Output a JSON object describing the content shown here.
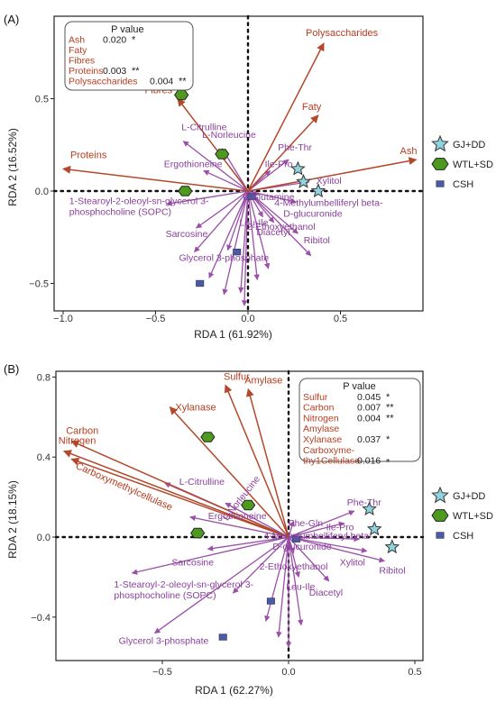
{
  "legend": {
    "items": [
      {
        "label": "GJ+DD",
        "shape": "star",
        "color": "#8fd3df"
      },
      {
        "label": "WTL+SD",
        "shape": "hexagon",
        "color": "#4e9a1f"
      },
      {
        "label": "CSH",
        "shape": "square",
        "color": "#4c5aa3"
      }
    ]
  },
  "colors": {
    "environment": "#b3482a",
    "metabolite": "#9a4fa8",
    "text_env": "#b83d20",
    "text_met": "#8a3f9c"
  },
  "chart_data": [
    {
      "type": "scatter",
      "panel_label": "(A)",
      "xlabel": "RDA 1 (61.92%)",
      "ylabel": "RDA 2 (16.52%)",
      "xlim": [
        -1.05,
        0.95
      ],
      "ylim": [
        -0.66,
        0.9
      ],
      "xticks": [
        {
          "v": -1.0,
          "label": "−1.0"
        },
        {
          "v": -0.5,
          "label": "−0.5"
        },
        {
          "v": 0.0,
          "label": "0.0"
        },
        {
          "v": 0.5,
          "label": "0.5"
        }
      ],
      "yticks": [
        {
          "v": -0.5,
          "label": "−0.5"
        },
        {
          "v": 0.0,
          "label": "0.0"
        },
        {
          "v": 0.5,
          "label": "0.5"
        }
      ],
      "pvalue_table": {
        "header": "P value",
        "rows": [
          {
            "name": "Ash",
            "p": "0.020",
            "sig": "*"
          },
          {
            "name": "Faty",
            "p": "",
            "sig": ""
          },
          {
            "name": "Fibres",
            "p": "",
            "sig": ""
          },
          {
            "name": "Proteins",
            "p": "0.003",
            "sig": "**"
          },
          {
            "name": "Polysaccharides",
            "p": "0.004",
            "sig": "**"
          }
        ]
      },
      "environment_arrows": [
        {
          "label": "Polysaccharides",
          "x": 0.41,
          "y": 0.8
        },
        {
          "label": "Faty",
          "x": 0.38,
          "y": 0.41
        },
        {
          "label": "Fibres",
          "x": -0.38,
          "y": 0.5
        },
        {
          "label": "Proteins",
          "x": -1.0,
          "y": 0.12
        },
        {
          "label": "Ash",
          "x": 0.91,
          "y": 0.17
        }
      ],
      "metabolite_arrows": [
        {
          "label": "L-Citrulline",
          "x": -0.35,
          "y": 0.27
        },
        {
          "label": "L-Norleucine",
          "x": -0.14,
          "y": 0.23
        },
        {
          "label": "Ergothioneine",
          "x": -0.24,
          "y": 0.11
        },
        {
          "label": "Phe-Thr",
          "x": 0.22,
          "y": 0.17
        },
        {
          "label": "Ile-Pro",
          "x": 0.12,
          "y": 0.11
        },
        {
          "label": "Xylitol",
          "x": 0.33,
          "y": 0.05
        },
        {
          "label": "L-Glutamine",
          "x": 0.06,
          "y": -0.02
        },
        {
          "label": "4-Methylumbelliferyl beta-D-glucuronide",
          "x": 0.26,
          "y": -0.06
        },
        {
          "label": "Leu-Ile",
          "x": 0.08,
          "y": -0.14
        },
        {
          "label": "2-Ethoxyethanol",
          "x": 0.14,
          "y": -0.17
        },
        {
          "label": "Diacetyl",
          "x": 0.27,
          "y": -0.23
        },
        {
          "label": "Ribitol",
          "x": 0.34,
          "y": -0.35
        },
        {
          "label": "Sarcosine",
          "x": -0.28,
          "y": -0.2
        },
        {
          "label": "Glycerol 3-phosphate",
          "x": -0.11,
          "y": -0.32
        },
        {
          "label": "1-Stearoyl-2-oleoyl-sn-glycerol 3-phosphocholine (SOPC)",
          "x": -0.44,
          "y": -0.07
        },
        {
          "label": "",
          "x": -0.04,
          "y": -0.55
        },
        {
          "label": "",
          "x": -0.21,
          "y": -0.47
        },
        {
          "label": "",
          "x": 0.05,
          "y": -0.48
        },
        {
          "label": "",
          "x": -0.13,
          "y": -0.56
        },
        {
          "label": "",
          "x": -0.29,
          "y": -0.33
        },
        {
          "label": "",
          "x": -0.02,
          "y": -0.62
        },
        {
          "label": "",
          "x": 0.11,
          "y": -0.42
        }
      ],
      "samples": [
        {
          "group": "GJ+DD",
          "x": 0.27,
          "y": 0.12
        },
        {
          "group": "GJ+DD",
          "x": 0.3,
          "y": 0.05
        },
        {
          "group": "GJ+DD",
          "x": 0.38,
          "y": 0.0
        },
        {
          "group": "WTL+SD",
          "x": -0.36,
          "y": 0.52
        },
        {
          "group": "WTL+SD",
          "x": -0.14,
          "y": 0.2
        },
        {
          "group": "WTL+SD",
          "x": -0.34,
          "y": 0.0
        },
        {
          "group": "CSH",
          "x": 0.02,
          "y": -0.03
        },
        {
          "group": "CSH",
          "x": -0.06,
          "y": -0.33
        },
        {
          "group": "CSH",
          "x": -0.26,
          "y": -0.5
        }
      ]
    },
    {
      "type": "scatter",
      "panel_label": "(B)",
      "xlabel": "RDA 1 (62.27%)",
      "ylabel": "RDA 2 (18.15%)",
      "xlim": [
        -0.92,
        0.52
      ],
      "ylim": [
        -0.58,
        0.88
      ],
      "xticks": [
        {
          "v": -0.5,
          "label": "−0.5"
        },
        {
          "v": 0.0,
          "label": "0.0"
        },
        {
          "v": 0.5,
          "label": "0.5"
        }
      ],
      "yticks": [
        {
          "v": -0.4,
          "label": "−0.4"
        },
        {
          "v": 0.0,
          "label": "0.0"
        },
        {
          "v": 0.4,
          "label": "0.4"
        },
        {
          "v": 0.8,
          "label": "0.8"
        }
      ],
      "pvalue_table": {
        "header": "P value",
        "rows": [
          {
            "name": "Sulfur",
            "p": "0.045",
            "sig": "*"
          },
          {
            "name": "Carbon",
            "p": "0.007",
            "sig": "**"
          },
          {
            "name": "Nitrogen",
            "p": "0.004",
            "sig": "**"
          },
          {
            "name": "Amylase",
            "p": "",
            "sig": ""
          },
          {
            "name": "Xylanase",
            "p": "0.037",
            "sig": "*"
          },
          {
            "name": "Carboxyme-thy1Cellulase",
            "p": "0.016",
            "sig": "*"
          }
        ]
      },
      "environment_arrows": [
        {
          "label": "Sulfur",
          "x": -0.25,
          "y": 0.76
        },
        {
          "label": "Amylase",
          "x": -0.16,
          "y": 0.74
        },
        {
          "label": "Xylanase",
          "x": -0.47,
          "y": 0.65
        },
        {
          "label": "Carbon",
          "x": -0.86,
          "y": 0.48
        },
        {
          "label": "Nitrogen",
          "x": -0.89,
          "y": 0.43
        },
        {
          "label": "Carboxymethylcellulase",
          "x": -0.86,
          "y": 0.39
        }
      ],
      "metabolite_arrows": [
        {
          "label": "L-Citrulline",
          "x": -0.49,
          "y": 0.27
        },
        {
          "label": "L-Norleucine",
          "x": -0.25,
          "y": 0.17
        },
        {
          "label": "Ergothioneine",
          "x": -0.39,
          "y": 0.1
        },
        {
          "label": "Phe-Thr",
          "x": 0.26,
          "y": 0.13
        },
        {
          "label": "Ile-Pro",
          "x": 0.22,
          "y": 0.07
        },
        {
          "label": "Phe-Gln",
          "x": 0.02,
          "y": 0.08
        },
        {
          "label": "4-Methylumbelliferyl beta-D-glucuronide",
          "x": 0.28,
          "y": -0.01
        },
        {
          "label": "Xylitol",
          "x": 0.31,
          "y": -0.07
        },
        {
          "label": "Ribitol",
          "x": 0.38,
          "y": -0.12
        },
        {
          "label": "2-Ethoxyethanol",
          "x": 0.02,
          "y": -0.08
        },
        {
          "label": "Leu-Ile",
          "x": 0.04,
          "y": -0.2
        },
        {
          "label": "Diacetyl",
          "x": 0.16,
          "y": -0.22
        },
        {
          "label": "Sarcosine",
          "x": -0.32,
          "y": -0.06
        },
        {
          "label": "1-Stearoyl-2-oleoyl-sn-glycerol 3-phosphocholine (SOPC)",
          "x": -0.62,
          "y": -0.18
        },
        {
          "label": "Glycerol 3-phosphate",
          "x": -0.53,
          "y": -0.48
        },
        {
          "label": "",
          "x": -0.09,
          "y": -0.42
        },
        {
          "label": "",
          "x": -0.04,
          "y": -0.5
        },
        {
          "label": "",
          "x": 0.05,
          "y": -0.44
        },
        {
          "label": "",
          "x": -0.22,
          "y": -0.28
        },
        {
          "label": "",
          "x": 0.0,
          "y": -0.55
        }
      ],
      "samples": [
        {
          "group": "GJ+DD",
          "x": 0.32,
          "y": 0.14
        },
        {
          "group": "GJ+DD",
          "x": 0.34,
          "y": 0.04
        },
        {
          "group": "GJ+DD",
          "x": 0.41,
          "y": -0.05
        },
        {
          "group": "WTL+SD",
          "x": -0.32,
          "y": 0.5
        },
        {
          "group": "WTL+SD",
          "x": -0.16,
          "y": 0.16
        },
        {
          "group": "WTL+SD",
          "x": -0.36,
          "y": 0.02
        },
        {
          "group": "CSH",
          "x": 0.03,
          "y": -0.01
        },
        {
          "group": "CSH",
          "x": -0.07,
          "y": -0.32
        },
        {
          "group": "CSH",
          "x": -0.26,
          "y": -0.5
        }
      ]
    }
  ]
}
